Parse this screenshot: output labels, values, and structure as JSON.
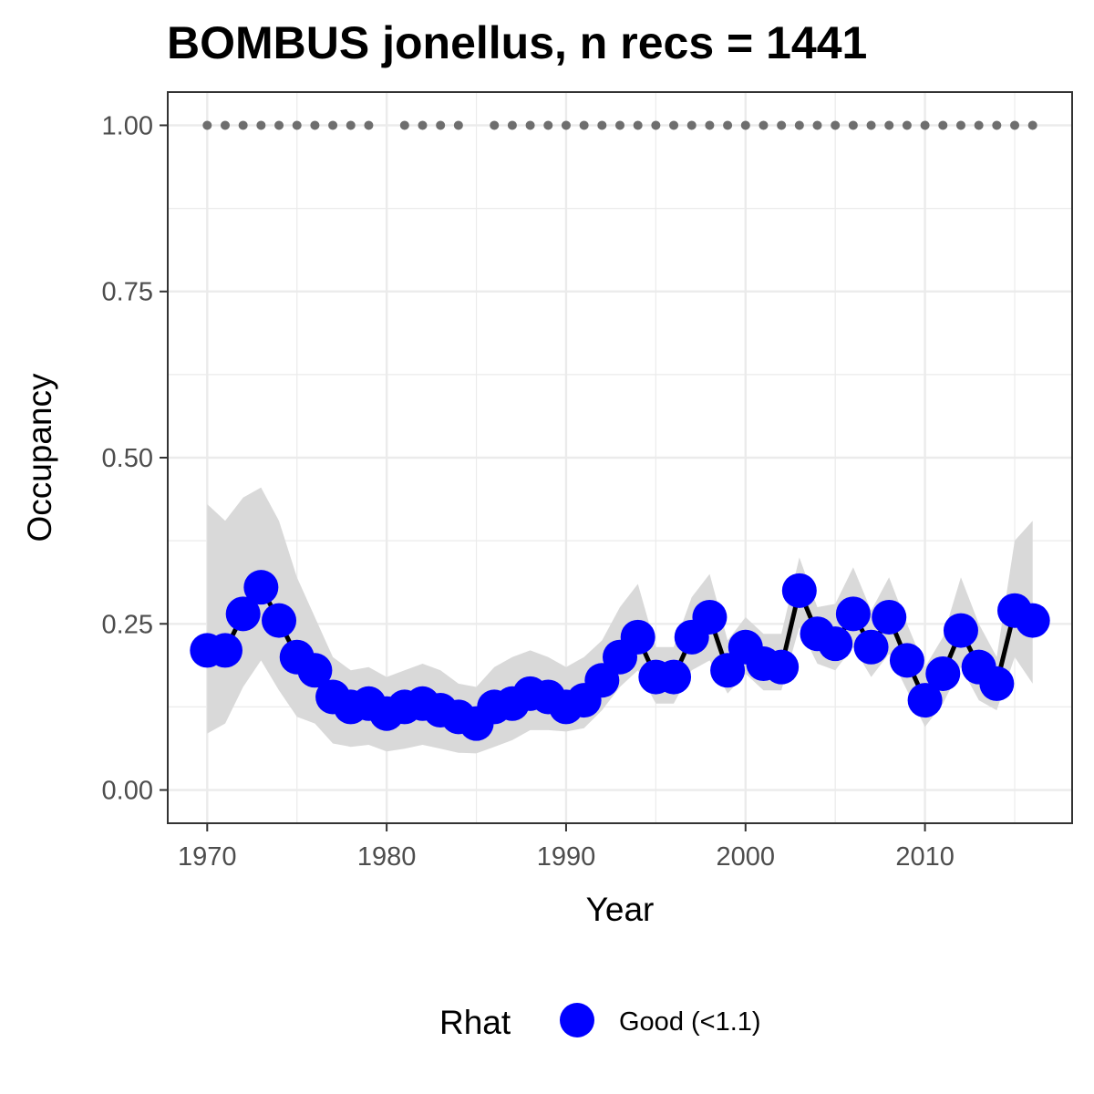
{
  "chart_data": {
    "type": "line",
    "title": "BOMBUS jonellus, n recs = 1441",
    "xlabel": "Year",
    "ylabel": "Occupancy",
    "xlim": [
      1967.8,
      2018.2
    ],
    "ylim": [
      -0.05,
      1.05
    ],
    "x_ticks": [
      1970,
      1980,
      1990,
      2000,
      2010
    ],
    "x_tick_labels": [
      "1970",
      "1980",
      "1990",
      "2000",
      "2010"
    ],
    "y_ticks": [
      0,
      0.25,
      0.5,
      0.75,
      1
    ],
    "y_tick_labels": [
      "0.00",
      "0.25",
      "0.50",
      "0.75",
      "1.00"
    ],
    "grid": true,
    "legend": {
      "position": "bottom",
      "title": "Rhat",
      "entries": [
        {
          "label": "Good (<1.1)",
          "color": "#0000ff"
        }
      ]
    },
    "colors": {
      "point": "#0000ff",
      "line": "#000000",
      "ribbon": "#d9d9d9",
      "record_dots": "#6e6e6e",
      "grid": "#ebebeb",
      "panel_border": "#333333"
    },
    "series": [
      {
        "x": [
          1970,
          1971,
          1972,
          1973,
          1974,
          1975,
          1976,
          1977,
          1978,
          1979,
          1980,
          1981,
          1982,
          1983,
          1984,
          1985,
          1986,
          1987,
          1988,
          1989,
          1990,
          1991,
          1992,
          1993,
          1994,
          1995,
          1996,
          1997,
          1998,
          1999,
          2000,
          2001,
          2002,
          2003,
          2004,
          2005,
          2006,
          2007,
          2008,
          2009,
          2010,
          2011,
          2012,
          2013,
          2014,
          2015,
          2016
        ],
        "y": [
          0.21,
          0.21,
          0.265,
          0.305,
          0.255,
          0.2,
          0.18,
          0.14,
          0.125,
          0.13,
          0.115,
          0.125,
          0.13,
          0.12,
          0.11,
          0.1,
          0.125,
          0.13,
          0.145,
          0.14,
          0.125,
          0.135,
          0.165,
          0.2,
          0.23,
          0.17,
          0.17,
          0.23,
          0.26,
          0.18,
          0.215,
          0.19,
          0.185,
          0.3,
          0.235,
          0.22,
          0.265,
          0.215,
          0.26,
          0.195,
          0.135,
          0.175,
          0.24,
          0.185,
          0.16,
          0.27,
          0.255
        ],
        "lower": [
          0.085,
          0.1,
          0.155,
          0.195,
          0.15,
          0.11,
          0.1,
          0.07,
          0.065,
          0.068,
          0.058,
          0.062,
          0.068,
          0.062,
          0.056,
          0.055,
          0.065,
          0.075,
          0.09,
          0.09,
          0.088,
          0.093,
          0.12,
          0.155,
          0.18,
          0.13,
          0.13,
          0.18,
          0.195,
          0.145,
          0.175,
          0.15,
          0.15,
          0.245,
          0.19,
          0.18,
          0.215,
          0.17,
          0.205,
          0.15,
          0.095,
          0.13,
          0.185,
          0.135,
          0.12,
          0.2,
          0.16
        ],
        "upper": [
          0.43,
          0.405,
          0.44,
          0.455,
          0.405,
          0.32,
          0.26,
          0.2,
          0.18,
          0.185,
          0.17,
          0.18,
          0.19,
          0.18,
          0.16,
          0.155,
          0.185,
          0.2,
          0.21,
          0.2,
          0.185,
          0.2,
          0.225,
          0.275,
          0.31,
          0.215,
          0.215,
          0.29,
          0.325,
          0.225,
          0.26,
          0.235,
          0.235,
          0.35,
          0.275,
          0.28,
          0.335,
          0.27,
          0.32,
          0.25,
          0.185,
          0.23,
          0.32,
          0.25,
          0.2,
          0.375,
          0.405
        ]
      }
    ],
    "records_years": [
      1970,
      1971,
      1972,
      1973,
      1974,
      1975,
      1976,
      1977,
      1978,
      1979,
      1981,
      1982,
      1983,
      1984,
      1986,
      1987,
      1988,
      1989,
      1990,
      1991,
      1992,
      1993,
      1994,
      1995,
      1996,
      1997,
      1998,
      1999,
      2000,
      2001,
      2002,
      2003,
      2004,
      2005,
      2006,
      2007,
      2008,
      2009,
      2010,
      2011,
      2012,
      2013,
      2014,
      2015,
      2016
    ],
    "records_y": 1
  }
}
